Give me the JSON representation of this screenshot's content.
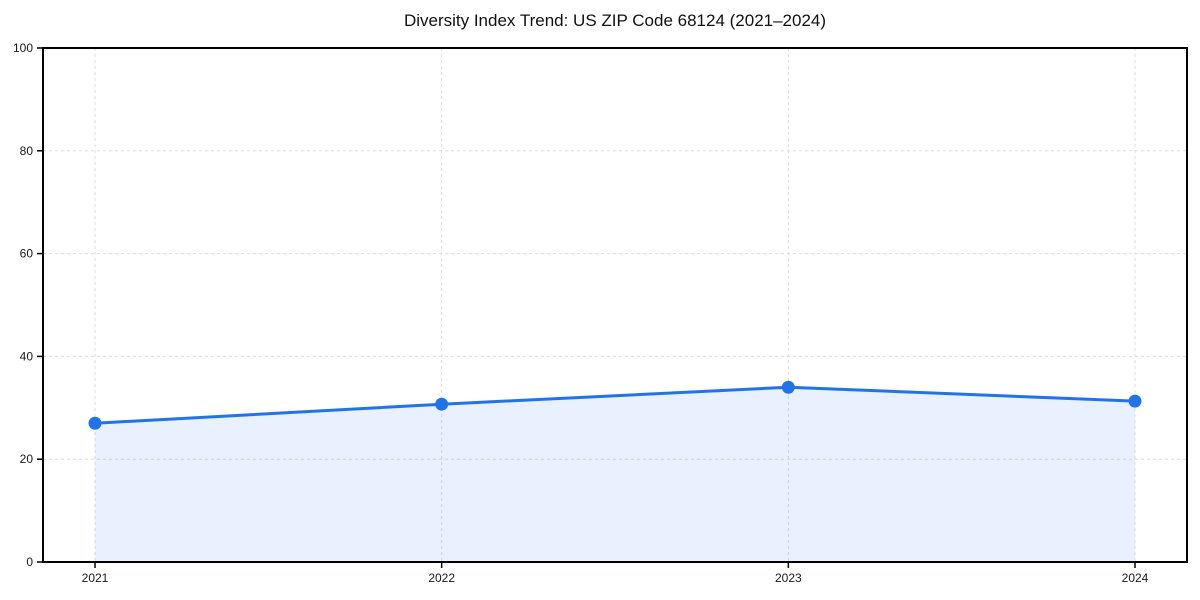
{
  "chart_data": {
    "type": "area",
    "title": "Diversity Index Trend: US ZIP Code 68124 (2021–2024)",
    "xlabel": "",
    "ylabel": "",
    "categories": [
      "2021",
      "2022",
      "2023",
      "2024"
    ],
    "values": [
      27.0,
      30.7,
      34.0,
      31.3
    ],
    "series_name": "Diversity Index",
    "ylim": [
      0,
      100
    ],
    "y_ticks": [
      0,
      20,
      40,
      60,
      80,
      100
    ],
    "grid": "dashed, horizontal and vertical",
    "legend_position": "none",
    "colors": {
      "line": "#2273e8",
      "marker": "#2273e8",
      "fill": "#2273e8",
      "fill_opacity": 0.1,
      "gridline": "#dddddd",
      "spine": "#000000",
      "tick_text": "#1a1a1a",
      "background": "#ffffff"
    }
  }
}
